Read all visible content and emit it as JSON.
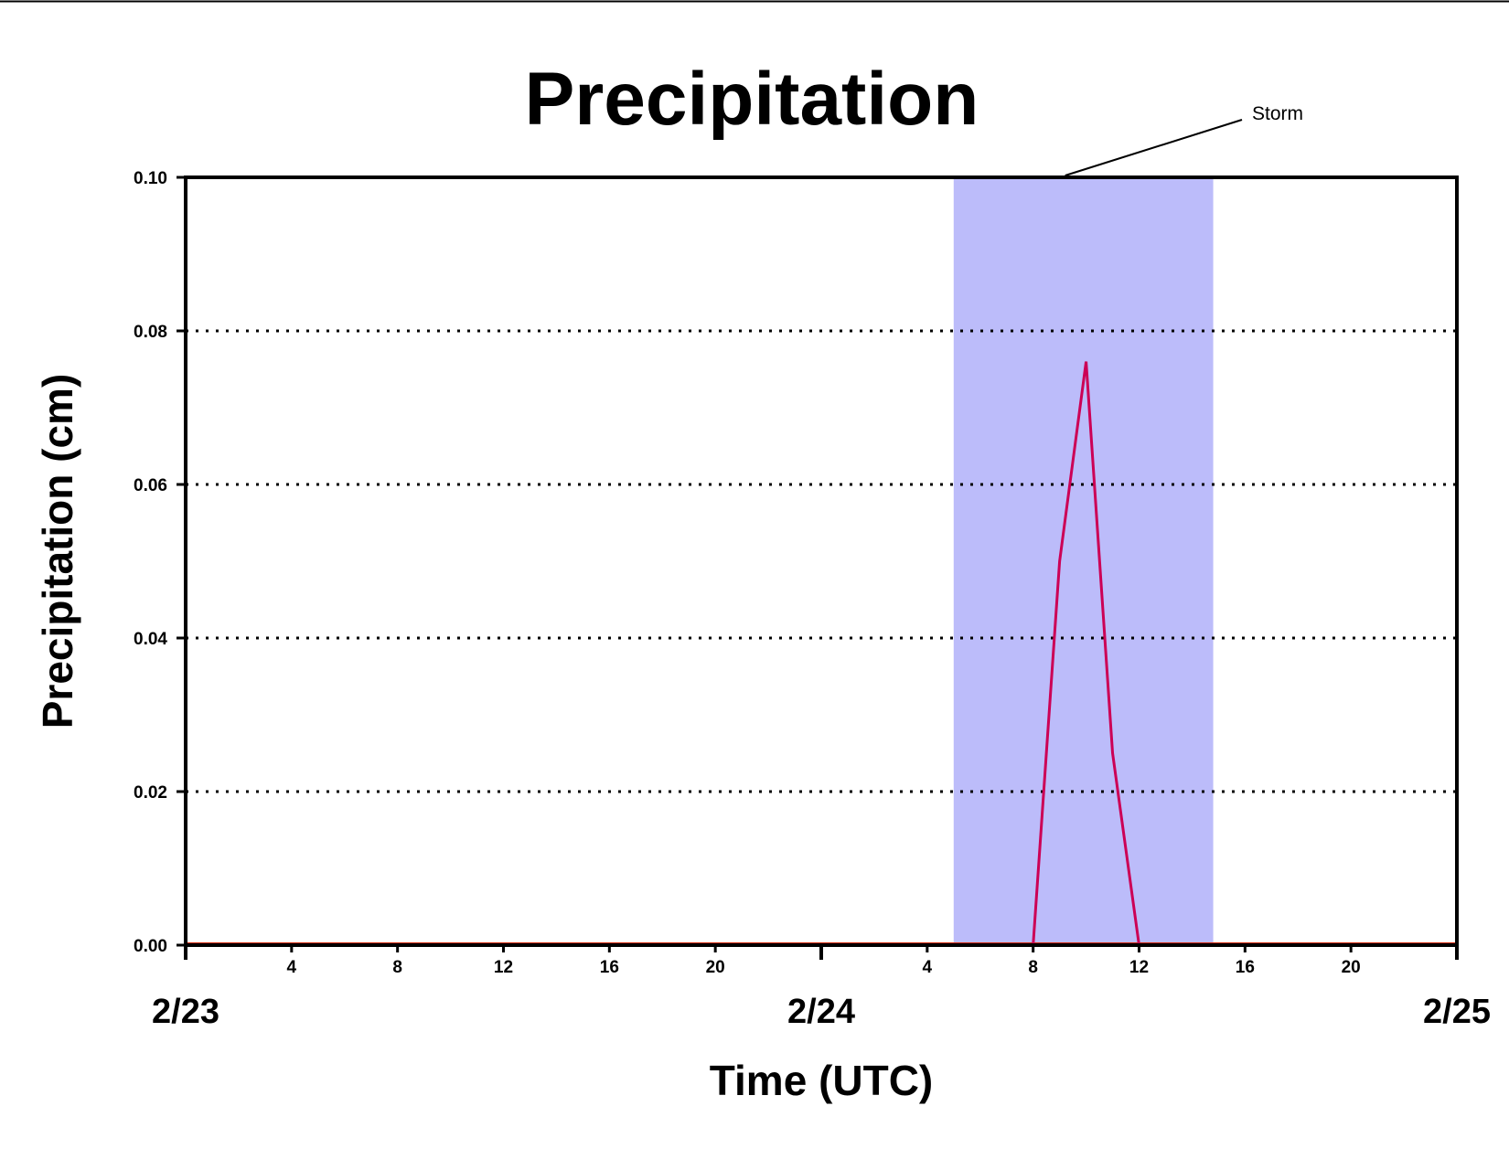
{
  "chart_data": {
    "type": "line",
    "title": "Precipitation",
    "xlabel": "Time (UTC)",
    "ylabel": "Precipitation (cm)",
    "ylim": [
      0,
      0.1
    ],
    "yticks": [
      "0.00",
      "0.02",
      "0.04",
      "0.06",
      "0.08",
      "0.10"
    ],
    "y_grid_values": [
      0.02,
      0.04,
      0.06,
      0.08
    ],
    "xlim_hours": [
      0,
      48
    ],
    "xticks": [
      {
        "hour": 4,
        "label": "4"
      },
      {
        "hour": 8,
        "label": "8"
      },
      {
        "hour": 12,
        "label": "12"
      },
      {
        "hour": 16,
        "label": "16"
      },
      {
        "hour": 20,
        "label": "20"
      },
      {
        "hour": 28,
        "label": "4"
      },
      {
        "hour": 32,
        "label": "8"
      },
      {
        "hour": 36,
        "label": "12"
      },
      {
        "hour": 40,
        "label": "16"
      },
      {
        "hour": 44,
        "label": "20"
      }
    ],
    "date_labels": [
      {
        "hour": 0,
        "label": "2/23"
      },
      {
        "hour": 24,
        "label": "2/24"
      },
      {
        "hour": 48,
        "label": "2/25"
      }
    ],
    "grid": "horizontal-dotted",
    "colors": {
      "series": "#cc0055",
      "baseline": "#cc2200",
      "storm_band": "#bcbcfa"
    },
    "storm_band": {
      "label": "Storm",
      "start_hour": 29,
      "end_hour": 38.8
    },
    "series": [
      {
        "x_hours": [
          0,
          32,
          33,
          34,
          35,
          36,
          48
        ],
        "values": [
          0,
          0,
          0.05,
          0.076,
          0.025,
          0,
          0
        ]
      }
    ]
  }
}
